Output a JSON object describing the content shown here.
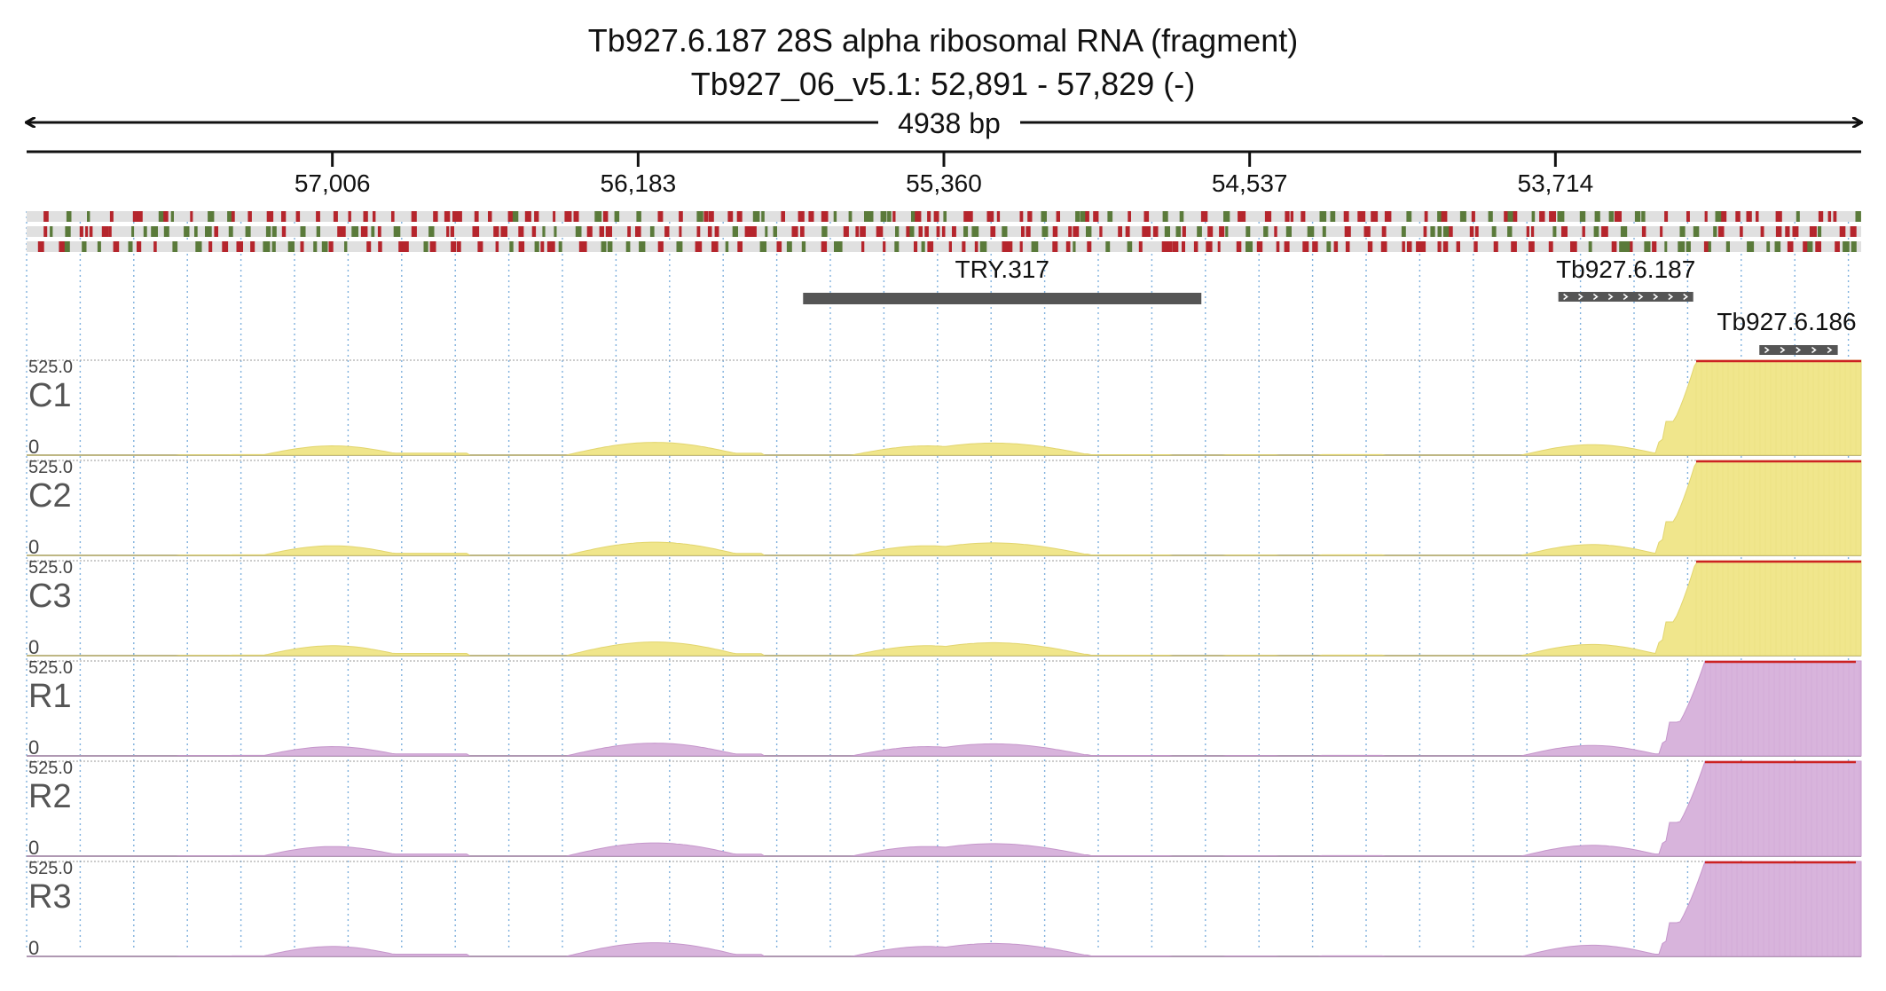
{
  "header": {
    "title": "Tb927.6.187  28S alpha ribosomal RNA (fragment)",
    "location": "Tb927_06_v5.1: 52,891 - 57,829 (-)",
    "span_label": "4938 bp"
  },
  "ruler": {
    "start": 57829,
    "end": 52891,
    "ticks": [
      {
        "pos": 57006,
        "label": "57,006"
      },
      {
        "pos": 56183,
        "label": "56,183"
      },
      {
        "pos": 55360,
        "label": "55,360"
      },
      {
        "pos": 54537,
        "label": "54,537"
      },
      {
        "pos": 53714,
        "label": "53,714"
      }
    ]
  },
  "colors": {
    "stop_codon": "#b5252c",
    "start_codon": "#5a7a3a",
    "frame_background": "#e0e0e0",
    "feature": "#555555",
    "conditions": "#f0e68c",
    "conditions_edge": "#e2d56e",
    "replicates": "#d8b4dc",
    "replicates_edge": "#c596cb",
    "clip_line": "#cc2222",
    "grid": "#7fb0dd"
  },
  "features": [
    {
      "id": "TRY.317",
      "label": "TRY.317",
      "start": 55739,
      "end": 54667,
      "arrows": false
    },
    {
      "id": "Tb927.6.187",
      "label": "Tb927.6.187",
      "start": 53706,
      "end": 53343,
      "arrows": true
    },
    {
      "id": "Tb927.6.186",
      "label": "Tb927.6.186",
      "start": 53165,
      "end": 52954,
      "arrows": true
    }
  ],
  "coverage": {
    "max_label": "525.0",
    "min_label": "0",
    "max_value": 525,
    "tracks": [
      {
        "name": "C1",
        "group": "conditions"
      },
      {
        "name": "C2",
        "group": "conditions"
      },
      {
        "name": "C3",
        "group": "conditions"
      },
      {
        "name": "R1",
        "group": "replicates"
      },
      {
        "name": "R2",
        "group": "replicates"
      },
      {
        "name": "R3",
        "group": "replicates"
      }
    ]
  }
}
